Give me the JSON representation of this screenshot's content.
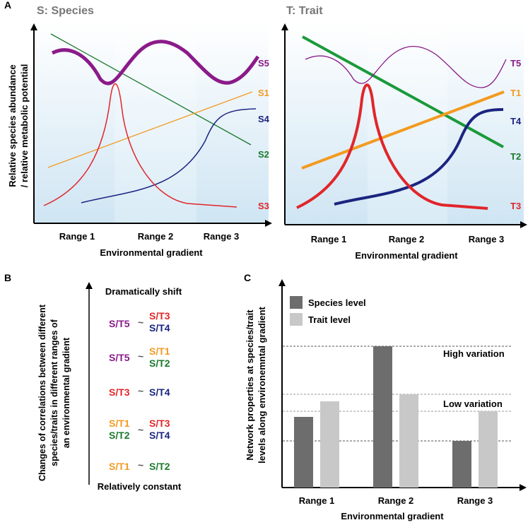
{
  "panelA": {
    "letter": "A",
    "left": {
      "title": "S: Species",
      "curves": {
        "s5": "S5",
        "s1": "S1",
        "s4": "S4",
        "s2": "S2",
        "s3": "S3"
      },
      "ranges": [
        "Range 1",
        "Range 2",
        "Range 3"
      ],
      "xlabel": "Environmental gradient"
    },
    "right": {
      "title": "T: Trait",
      "curves": {
        "t5": "T5",
        "t1": "T1",
        "t4": "T4",
        "t2": "T2",
        "t3": "T3"
      },
      "ranges": [
        "Range 1",
        "Range 2",
        "Range 3"
      ],
      "xlabel": "Environmental gradient"
    },
    "ylabel_line1": "Relative species abundance",
    "ylabel_line2": "/ relative metabolic potential"
  },
  "panelB": {
    "letter": "B",
    "ylabel_line1": "Changes of correlations between different",
    "ylabel_line2": "species/traits in different ranges of",
    "ylabel_line3": "an environmental gradient",
    "top_label": "Dramatically shift",
    "bottom_label": "Relatively constant",
    "tilde": "~",
    "rows": [
      {
        "left": "S/T5",
        "right_top": "S/T3",
        "right_bottom": "S/T4"
      },
      {
        "left": "S/T5",
        "right_top": "S/T1",
        "right_bottom": "S/T2"
      },
      {
        "left": "S/T3",
        "right": "S/T4"
      },
      {
        "left_top": "S/T1",
        "left_bottom": "S/T2",
        "right_top": "S/T3",
        "right_bottom": "S/T4"
      },
      {
        "left": "S/T1",
        "right": "S/T2"
      }
    ]
  },
  "panelC": {
    "letter": "C",
    "high_label": "High variation",
    "low_label": "Low variation",
    "ylabel_line1": "Network properties at species/trait",
    "ylabel_line2": "levels along environemntal gradient"
  },
  "colors": {
    "s5": "#8b1a89",
    "s1": "#f39a1f",
    "s4": "#1b2480",
    "s2": "#1a7a2e",
    "s3": "#e0262a",
    "species_bar": "#6d6d6d",
    "trait_bar": "#c8c8c8",
    "title_gray": "#777777"
  },
  "chart_data": {
    "type": "bar",
    "title": "",
    "categories": [
      "Range 1",
      "Range 2",
      "Range 3"
    ],
    "series": [
      {
        "name": "Species level",
        "values": [
          0.5,
          1.0,
          0.33
        ]
      },
      {
        "name": "Trait level",
        "values": [
          0.61,
          0.66,
          0.54
        ]
      }
    ],
    "ylim": [
      0,
      1.0
    ],
    "xlabel": "Environmental gradient",
    "ylabel": "Network properties at species/trait levels along environemntal gradient",
    "legend": "top-left",
    "reference_lines": [
      1.0,
      0.66,
      0.54,
      0.33
    ]
  }
}
